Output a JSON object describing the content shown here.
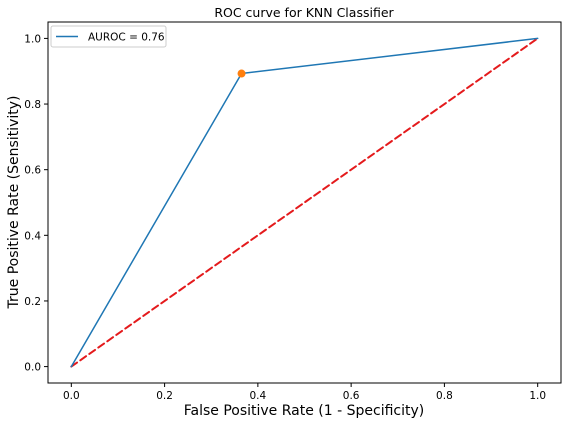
{
  "chart_data": {
    "type": "line",
    "title": "ROC curve for KNN Classifier",
    "xlabel": "False Positive Rate (1 - Specificity)",
    "ylabel": "True Positive Rate (Sensitivity)",
    "xlim": [
      -0.05,
      1.05
    ],
    "ylim": [
      -0.05,
      1.05
    ],
    "x_ticks": [
      0.0,
      0.2,
      0.4,
      0.6,
      0.8,
      1.0
    ],
    "y_ticks": [
      0.0,
      0.2,
      0.4,
      0.6,
      0.8,
      1.0
    ],
    "x_tick_labels": [
      "0.0",
      "0.2",
      "0.4",
      "0.6",
      "0.8",
      "1.0"
    ],
    "y_tick_labels": [
      "0.0",
      "0.2",
      "0.4",
      "0.6",
      "0.8",
      "1.0"
    ],
    "grid": false,
    "legend_position": "top-left",
    "series": [
      {
        "name": "AUROC = 0.76",
        "style": "solid",
        "color": "#1f77b4",
        "x": [
          0.0,
          0.365,
          1.0
        ],
        "y": [
          0.0,
          0.893,
          1.0
        ]
      },
      {
        "style": "dashed",
        "color": "#e41a1c",
        "x": [
          0.0,
          1.0
        ],
        "y": [
          0.0,
          1.0
        ]
      }
    ],
    "markers": [
      {
        "x": 0.365,
        "y": 0.893,
        "color": "#ff7f0e"
      }
    ]
  }
}
